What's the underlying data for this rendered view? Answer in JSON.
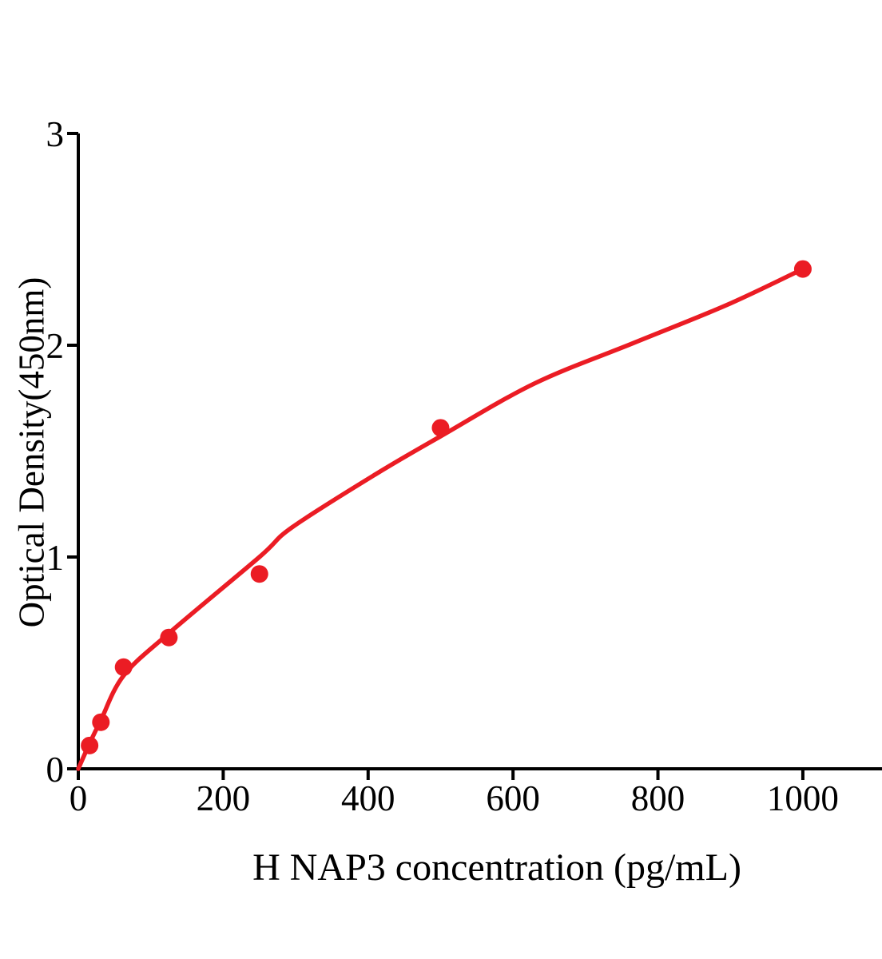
{
  "chart_data": {
    "type": "scatter",
    "title": "",
    "xlabel": "H NAP3 concentration (pg/mL)",
    "ylabel": "Optical Density(450nm)",
    "xlim": [
      0,
      1053
    ],
    "ylim": [
      0,
      3
    ],
    "x_ticks": [
      0,
      200,
      400,
      600,
      800,
      1000
    ],
    "y_ticks": [
      0,
      1,
      2,
      3
    ],
    "grid": false,
    "legend": false,
    "series": [
      {
        "name": "fitted-curve",
        "type": "line",
        "color": "#EB1C24",
        "x": [
          0,
          15.6,
          31.2,
          62.5,
          125,
          250,
          295,
          410,
          500,
          630,
          766,
          895,
          1000
        ],
        "y": [
          0.0,
          0.12,
          0.23,
          0.44,
          0.64,
          1.0,
          1.14,
          1.39,
          1.57,
          1.82,
          2.01,
          2.19,
          2.36
        ]
      },
      {
        "name": "standard-points",
        "type": "scatter",
        "color": "#EB1C24",
        "x": [
          15.6,
          31.2,
          62.5,
          125,
          250,
          500,
          1000
        ],
        "y": [
          0.11,
          0.22,
          0.48,
          0.62,
          0.92,
          1.61,
          2.36
        ]
      }
    ]
  },
  "colors": {
    "accent": "#EB1C24",
    "axis": "#000000",
    "background": "#FFFFFF"
  }
}
